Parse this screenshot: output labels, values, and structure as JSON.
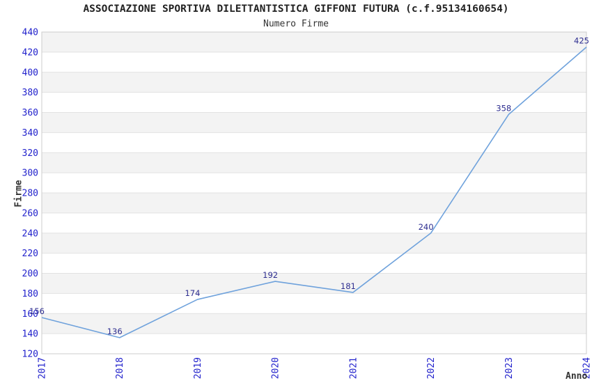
{
  "header": {
    "title": "ASSOCIAZIONE SPORTIVA DILETTANTISTICA GIFFONI FUTURA (c.f.95134160654)",
    "subtitle": "Numero Firme"
  },
  "chart_data": {
    "type": "line",
    "title": "ASSOCIAZIONE SPORTIVA DILETTANTISTICA GIFFONI FUTURA (c.f.95134160654)",
    "subtitle": "Numero Firme",
    "xlabel": "Anno",
    "ylabel": "Firme",
    "categories": [
      "2017",
      "2018",
      "2019",
      "2020",
      "2021",
      "2022",
      "2023",
      "2024"
    ],
    "values": [
      156,
      136,
      174,
      192,
      181,
      240,
      358,
      425
    ],
    "point_labels": [
      "156",
      "136",
      "174",
      "192",
      "181",
      "240",
      "358",
      "425"
    ],
    "ylim": [
      120,
      440
    ],
    "ytick_step": 20,
    "ytick_labels": [
      "120",
      "140",
      "160",
      "180",
      "200",
      "220",
      "240",
      "260",
      "280",
      "300",
      "320",
      "340",
      "360",
      "380",
      "400",
      "420",
      "440"
    ],
    "grid": "horizontal",
    "banded_background": true,
    "legend_position": "none",
    "colors": {
      "line": "#6FA2DC",
      "tick_label": "#2222CC",
      "point_label": "#2E2E90",
      "band": "#F3F3F3",
      "grid": "#E2E2E2",
      "plot_border": "#CCCCCC",
      "title": "#222222",
      "axis_label": "#333333",
      "background": "#FFFFFF"
    }
  }
}
